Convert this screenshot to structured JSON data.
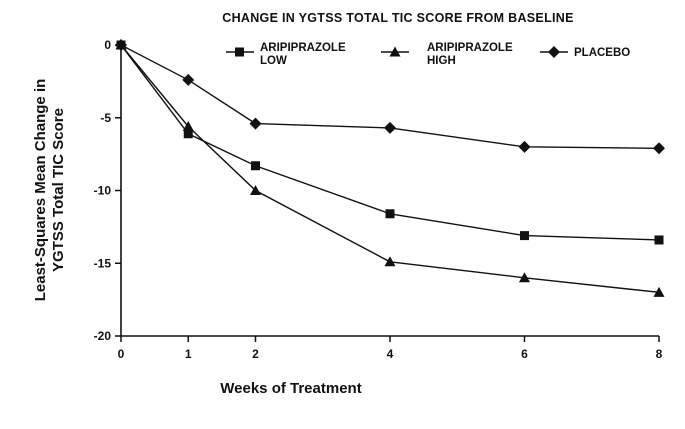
{
  "chart_data": {
    "type": "line",
    "title": "CHANGE IN YGTSS TOTAL TIC SCORE FROM BASELINE",
    "xlabel": "Weeks of Treatment",
    "ylabel_lines": [
      "Least-Squares Mean Change in",
      "YGTSS Total TIC Score"
    ],
    "x": [
      0,
      1,
      2,
      4,
      6,
      8
    ],
    "xlim": [
      0,
      8
    ],
    "ylim": [
      -20,
      0
    ],
    "xticks": [
      0,
      1,
      2,
      4,
      6,
      8
    ],
    "yticks": [
      0,
      -5,
      -10,
      -15,
      -20
    ],
    "grid": false,
    "legend_position": "top-right",
    "series": [
      {
        "name_lines": [
          "ARIPIPRAZOLE",
          "LOW"
        ],
        "marker": "square",
        "values": [
          0,
          -6.1,
          -8.3,
          -11.6,
          -13.1,
          -13.4
        ]
      },
      {
        "name_lines": [
          "ARIPIPRAZOLE",
          "HIGH"
        ],
        "marker": "triangle",
        "values": [
          0,
          -5.6,
          -10.0,
          -14.9,
          -16.0,
          -17.0
        ]
      },
      {
        "name_lines": [
          "PLACEBO"
        ],
        "marker": "diamond",
        "values": [
          0,
          -2.4,
          -5.4,
          -5.7,
          -7.0,
          -7.1
        ]
      }
    ]
  }
}
